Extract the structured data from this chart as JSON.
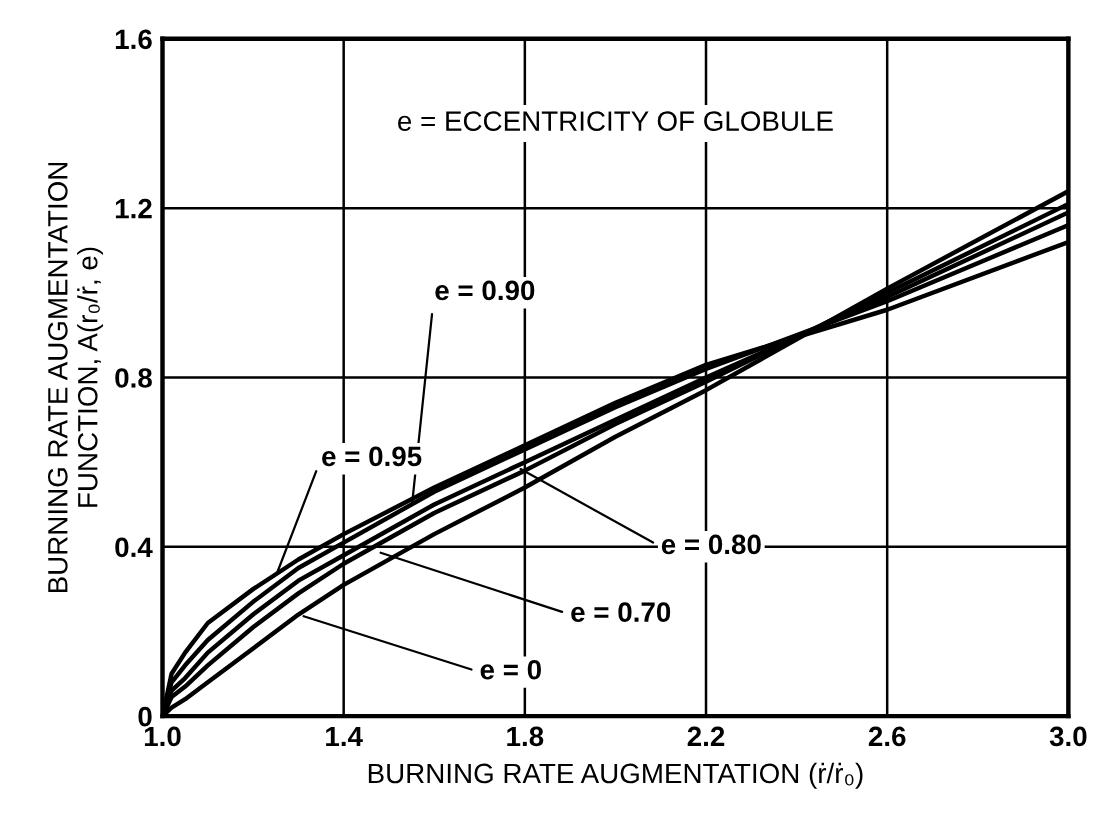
{
  "chart_data": {
    "type": "line",
    "xlabel": "BURNING RATE AUGMENTATION (ṙ/ṙ₀)",
    "ylabel": "BURNING RATE AUGMENTATION\nFUNCTION, A(r₀/ṙ, e)",
    "annotations": [
      "e = ECCENTRICITY OF GLOBULE",
      {
        "text": "e = 0.90",
        "x": 1.55,
        "y": 0.49
      },
      {
        "text": "e = 0.95",
        "x": 1.25,
        "y": 0.33
      },
      {
        "text": "e = 0.80",
        "x": 1.78,
        "y": 0.59
      },
      {
        "text": "e = 0.70",
        "x": 1.47,
        "y": 0.39
      },
      {
        "text": "e = 0",
        "x": 1.3,
        "y": 0.24
      }
    ],
    "x": [
      1.0,
      1.02,
      1.05,
      1.1,
      1.2,
      1.3,
      1.4,
      1.6,
      1.8,
      2.0,
      2.2,
      2.6,
      3.0
    ],
    "series": [
      {
        "color": "#000000",
        "values": [
          0,
          0.08,
          0.12,
          0.18,
          0.27,
          0.35,
          0.41,
          0.53,
          0.63,
          0.73,
          0.82,
          0.98,
          1.16
        ]
      },
      {
        "color": "#000000",
        "values": [
          0,
          0.1,
          0.15,
          0.22,
          0.3,
          0.37,
          0.43,
          0.54,
          0.64,
          0.74,
          0.83,
          0.96,
          1.12
        ]
      },
      {
        "color": "#000000",
        "values": [
          0,
          0.06,
          0.09,
          0.15,
          0.24,
          0.32,
          0.38,
          0.5,
          0.6,
          0.7,
          0.8,
          0.99,
          1.19
        ]
      },
      {
        "color": "#000000",
        "values": [
          0,
          0.045,
          0.07,
          0.12,
          0.21,
          0.29,
          0.36,
          0.48,
          0.58,
          0.69,
          0.79,
          1.0,
          1.21
        ]
      },
      {
        "color": "#000000",
        "values": [
          0,
          0.02,
          0.04,
          0.08,
          0.16,
          0.24,
          0.31,
          0.43,
          0.54,
          0.66,
          0.77,
          1.01,
          1.24
        ]
      }
    ],
    "xlim": [
      1.0,
      3.0
    ],
    "ylim": [
      0,
      1.6
    ],
    "xticks": [
      {
        "value": 1.0,
        "label": "1.0"
      },
      1.4,
      1.8,
      2.2,
      2.6,
      {
        "value": 3.0,
        "label": "3.0"
      }
    ],
    "yticks": [
      0,
      0.4,
      0.8,
      1.2,
      1.6
    ],
    "grid": true,
    "line_style": "solid",
    "marker": "none"
  }
}
